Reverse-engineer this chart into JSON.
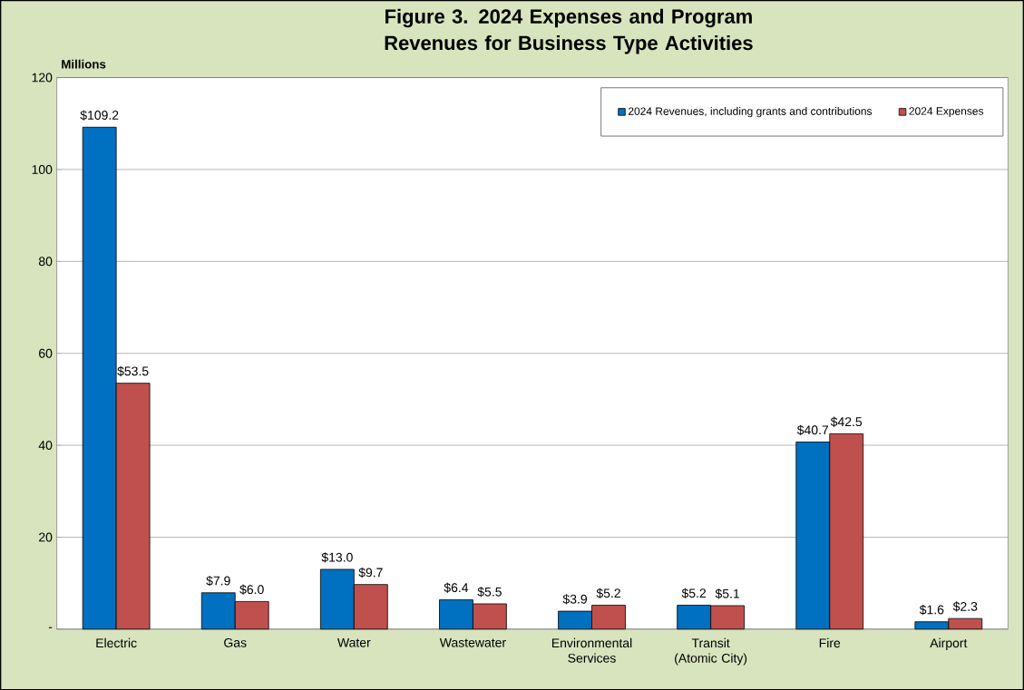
{
  "chart_data": {
    "type": "bar",
    "title": "Figure 3. 2024 Expenses and Program Revenues for Business Type Activities",
    "ylabel": "Millions",
    "categories": [
      "Electric",
      "Gas",
      "Water",
      "Wastewater",
      "Environmental Services",
      "Transit (Atomic City)",
      "Fire",
      "Airport"
    ],
    "series": [
      {
        "name": "2024 Revenues, including grants and contributions",
        "color": "#0070c0",
        "values": [
          109.2,
          7.9,
          13.0,
          6.4,
          3.9,
          5.2,
          40.7,
          1.6
        ],
        "value_labels": [
          "$109.2",
          "$7.9",
          "$13.0",
          "$6.4",
          "$3.9",
          "$5.2",
          "$40.7",
          "$1.6"
        ]
      },
      {
        "name": "2024 Expenses",
        "color": "#c0504d",
        "values": [
          53.5,
          6.0,
          9.7,
          5.5,
          5.2,
          5.1,
          42.5,
          2.3
        ],
        "value_labels": [
          "$53.5",
          "$6.0",
          "$9.7",
          "$5.5",
          "$5.2",
          "$5.1",
          "$42.5",
          "$2.3"
        ]
      }
    ],
    "ylim": [
      0,
      120
    ],
    "yticks": [
      {
        "value": 0,
        "label": "-"
      },
      20,
      40,
      60,
      80,
      100,
      120
    ],
    "grid": "y",
    "legend": "top right"
  }
}
